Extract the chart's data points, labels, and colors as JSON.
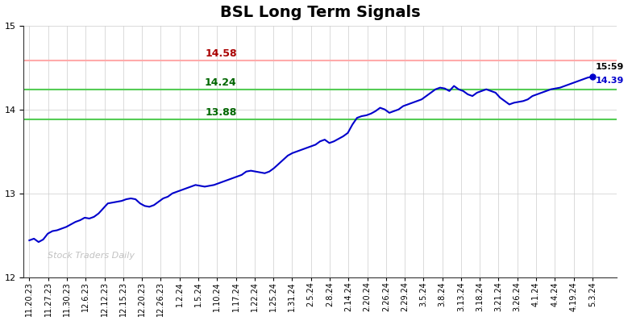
{
  "title": "BSL Long Term Signals",
  "title_fontsize": 14,
  "title_fontweight": "bold",
  "line_color": "#0000cc",
  "line_width": 1.5,
  "background_color": "#ffffff",
  "grid_color": "#cccccc",
  "hline_red_value": 14.58,
  "hline_red_color": "#ffaaaa",
  "hline_red_linewidth": 1.5,
  "hline_green1_value": 14.24,
  "hline_green1_color": "#55cc55",
  "hline_green1_linewidth": 1.5,
  "hline_green2_value": 13.88,
  "hline_green2_color": "#55cc55",
  "hline_green2_linewidth": 1.5,
  "label_red_text": "14.58",
  "label_red_color": "#aa0000",
  "label_green1_text": "14.24",
  "label_green1_color": "#006600",
  "label_green2_text": "13.88",
  "label_green2_color": "#006600",
  "annotation_time": "15:59",
  "annotation_value": "14.39",
  "annotation_color": "#0000cc",
  "watermark_text": "Stock Traders Daily",
  "watermark_color": "#bbbbbb",
  "ylim": [
    12.0,
    15.0
  ],
  "tick_fontsize": 8,
  "xlabel_fontsize": 7,
  "x_labels": [
    "11.20.23",
    "11.27.23",
    "11.30.23",
    "12.6.23",
    "12.12.23",
    "12.15.23",
    "12.20.23",
    "12.26.23",
    "1.2.24",
    "1.5.24",
    "1.10.24",
    "1.17.24",
    "1.22.24",
    "1.25.24",
    "1.31.24",
    "2.5.24",
    "2.8.24",
    "2.14.24",
    "2.20.24",
    "2.26.24",
    "2.29.24",
    "3.5.24",
    "3.8.24",
    "3.13.24",
    "3.18.24",
    "3.21.24",
    "3.26.24",
    "4.1.24",
    "4.4.24",
    "4.19.24",
    "5.3.24"
  ],
  "y_at_labels": [
    12.44,
    12.42,
    12.55,
    12.63,
    12.72,
    12.7,
    12.89,
    12.93,
    12.94,
    12.84,
    13.0,
    13.08,
    13.1,
    13.09,
    13.22,
    13.26,
    13.24,
    13.52,
    13.58,
    13.62,
    13.92,
    14.02,
    13.96,
    14.12,
    14.26,
    14.28,
    14.2,
    14.06,
    14.08,
    14.26,
    14.39
  ],
  "y_detail": [
    12.44,
    12.46,
    12.42,
    12.45,
    12.52,
    12.55,
    12.56,
    12.58,
    12.6,
    12.63,
    12.66,
    12.68,
    12.71,
    12.7,
    12.72,
    12.76,
    12.82,
    12.88,
    12.89,
    12.9,
    12.91,
    12.93,
    12.94,
    12.93,
    12.88,
    12.85,
    12.84,
    12.86,
    12.9,
    12.94,
    12.96,
    13.0,
    13.02,
    13.04,
    13.06,
    13.08,
    13.1,
    13.09,
    13.08,
    13.09,
    13.1,
    13.12,
    13.14,
    13.16,
    13.18,
    13.2,
    13.22,
    13.26,
    13.27,
    13.26,
    13.25,
    13.24,
    13.26,
    13.3,
    13.35,
    13.4,
    13.45,
    13.48,
    13.5,
    13.52,
    13.54,
    13.56,
    13.58,
    13.62,
    13.64,
    13.6,
    13.62,
    13.65,
    13.68,
    13.72,
    13.82,
    13.9,
    13.92,
    13.93,
    13.95,
    13.98,
    14.02,
    14.0,
    13.96,
    13.98,
    14.0,
    14.04,
    14.06,
    14.08,
    14.1,
    14.12,
    14.16,
    14.2,
    14.24,
    14.26,
    14.25,
    14.22,
    14.28,
    14.24,
    14.22,
    14.18,
    14.16,
    14.2,
    14.22,
    14.24,
    14.22,
    14.2,
    14.14,
    14.1,
    14.06,
    14.08,
    14.09,
    14.1,
    14.12,
    14.16,
    14.18,
    14.2,
    14.22,
    14.24,
    14.25,
    14.26,
    14.28,
    14.3,
    14.32,
    14.34,
    14.36,
    14.38,
    14.39
  ]
}
